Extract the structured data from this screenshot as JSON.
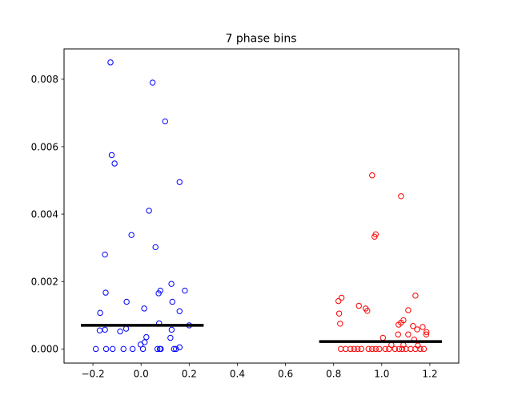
{
  "chart_data": {
    "type": "scatter",
    "title": "7 phase bins",
    "xlabel": "",
    "ylabel": "",
    "xlim": [
      -0.32,
      1.32
    ],
    "ylim": [
      -0.00042,
      0.0089
    ],
    "x_ticks": [
      -0.2,
      0.0,
      0.2,
      0.4,
      0.6,
      0.8,
      1.0,
      1.2
    ],
    "x_tick_labels": [
      "−0.2",
      "0.0",
      "0.2",
      "0.4",
      "0.6",
      "0.8",
      "1.0",
      "1.2"
    ],
    "y_ticks": [
      0.0,
      0.002,
      0.004,
      0.006,
      0.008
    ],
    "y_tick_labels": [
      "0.000",
      "0.002",
      "0.004",
      "0.006",
      "0.008"
    ],
    "grid": false,
    "legend": "none",
    "marker": "open-circle",
    "series": [
      {
        "color": "#0000ff",
        "points": [
          [
            -0.127,
            0.0085
          ],
          [
            0.048,
            0.0079
          ],
          [
            0.1,
            0.00675
          ],
          [
            -0.122,
            0.00575
          ],
          [
            -0.11,
            0.0055
          ],
          [
            0.16,
            0.00495
          ],
          [
            0.033,
            0.0041
          ],
          [
            -0.04,
            0.00338
          ],
          [
            0.06,
            0.00302
          ],
          [
            -0.15,
            0.0028
          ],
          [
            0.126,
            0.00193
          ],
          [
            -0.147,
            0.00167
          ],
          [
            0.08,
            0.00173
          ],
          [
            0.182,
            0.00173
          ],
          [
            0.073,
            0.00165
          ],
          [
            -0.06,
            0.0014
          ],
          [
            0.13,
            0.0014
          ],
          [
            0.013,
            0.0012
          ],
          [
            0.16,
            0.00112
          ],
          [
            -0.17,
            0.00107
          ],
          [
            0.075,
            0.00076
          ],
          [
            0.2,
            0.0007
          ],
          [
            -0.062,
            0.0006
          ],
          [
            -0.15,
            0.00057
          ],
          [
            -0.172,
            0.00055
          ],
          [
            -0.087,
            0.00052
          ],
          [
            0.127,
            0.00057
          ],
          [
            0.022,
            0.00035
          ],
          [
            0.122,
            0.00033
          ],
          [
            0.015,
            0.0002
          ],
          [
            -0.002,
            0.00013
          ],
          [
            -0.188,
            0.0
          ],
          [
            -0.145,
            0.0
          ],
          [
            -0.118,
            0.0
          ],
          [
            -0.073,
            0.0
          ],
          [
            -0.035,
            0.0
          ],
          [
            0.008,
            0.0
          ],
          [
            0.068,
            0.0
          ],
          [
            0.078,
            0.0
          ],
          [
            0.082,
            0.0
          ],
          [
            0.137,
            0.0
          ],
          [
            0.145,
            0.0
          ],
          [
            0.16,
            5e-05
          ]
        ]
      },
      {
        "color": "#ff0000",
        "points": [
          [
            0.96,
            0.00515
          ],
          [
            1.08,
            0.00453
          ],
          [
            0.975,
            0.0034
          ],
          [
            0.97,
            0.00333
          ],
          [
            1.14,
            0.00158
          ],
          [
            0.833,
            0.00152
          ],
          [
            0.82,
            0.00142
          ],
          [
            0.905,
            0.00128
          ],
          [
            0.933,
            0.0012
          ],
          [
            0.94,
            0.00113
          ],
          [
            1.11,
            0.00115
          ],
          [
            0.823,
            0.00105
          ],
          [
            1.09,
            0.00085
          ],
          [
            1.08,
            0.00078
          ],
          [
            1.07,
            0.00072
          ],
          [
            0.827,
            0.00075
          ],
          [
            1.13,
            0.00068
          ],
          [
            1.17,
            0.00065
          ],
          [
            1.147,
            0.00058
          ],
          [
            1.186,
            0.0005
          ],
          [
            1.185,
            0.00043
          ],
          [
            1.068,
            0.00043
          ],
          [
            1.11,
            0.00043
          ],
          [
            1.005,
            0.00033
          ],
          [
            1.135,
            0.00028
          ],
          [
            1.04,
            0.00012
          ],
          [
            1.09,
            0.00012
          ],
          [
            1.15,
            0.0001
          ],
          [
            0.83,
            0.0
          ],
          [
            0.85,
            0.0
          ],
          [
            0.87,
            0.0
          ],
          [
            0.885,
            0.0
          ],
          [
            0.9,
            0.0
          ],
          [
            0.915,
            0.0
          ],
          [
            0.945,
            0.0
          ],
          [
            0.96,
            0.0
          ],
          [
            0.975,
            0.0
          ],
          [
            0.99,
            0.0
          ],
          [
            1.015,
            0.0
          ],
          [
            1.03,
            0.0
          ],
          [
            1.055,
            0.0
          ],
          [
            1.072,
            0.0
          ],
          [
            1.085,
            0.0
          ],
          [
            1.1,
            0.0
          ],
          [
            1.12,
            0.0
          ],
          [
            1.14,
            0.0
          ],
          [
            1.16,
            0.0
          ],
          [
            1.175,
            0.0
          ]
        ]
      }
    ],
    "hlines": [
      {
        "x": [
          -0.25,
          0.26
        ],
        "y": 0.0007,
        "color": "#000000"
      },
      {
        "x": [
          0.74,
          1.25
        ],
        "y": 0.00022,
        "color": "#000000"
      }
    ]
  }
}
